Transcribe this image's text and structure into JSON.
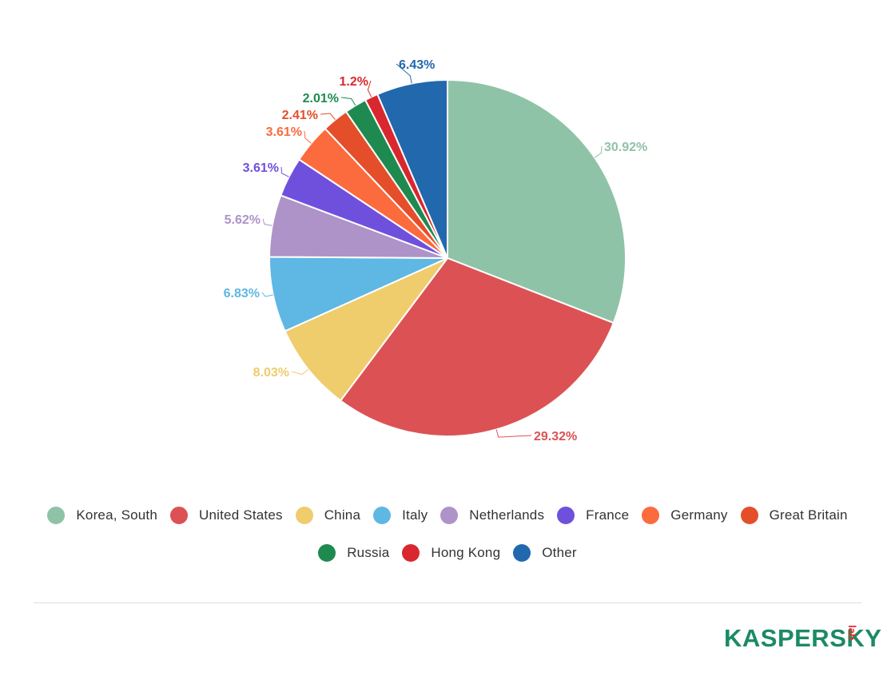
{
  "chart_data": {
    "type": "pie",
    "start_angle_deg": 0,
    "direction": "clockwise",
    "slices": [
      {
        "name": "Korea, South",
        "value": 30.92,
        "label": "30.92%",
        "color": "#8fc3a8"
      },
      {
        "name": "United States",
        "value": 29.32,
        "label": "29.32%",
        "color": "#dc5254"
      },
      {
        "name": "China",
        "value": 8.03,
        "label": "8.03%",
        "color": "#efcc6c"
      },
      {
        "name": "Italy",
        "value": 6.83,
        "label": "6.83%",
        "color": "#5fb7e3"
      },
      {
        "name": "Netherlands",
        "value": 5.62,
        "label": "5.62%",
        "color": "#ad93c8"
      },
      {
        "name": "France",
        "value": 3.61,
        "label": "3.61%",
        "color": "#6f50dc"
      },
      {
        "name": "Germany",
        "value": 3.61,
        "label": "3.61%",
        "color": "#fb6b3e"
      },
      {
        "name": "Great Britain",
        "value": 2.41,
        "label": "2.41%",
        "color": "#e54e2b"
      },
      {
        "name": "Russia",
        "value": 2.01,
        "label": "2.01%",
        "color": "#1e8a4f"
      },
      {
        "name": "Hong Kong",
        "value": 1.2,
        "label": "1.2%",
        "color": "#d8272f"
      },
      {
        "name": "Other",
        "value": 6.43,
        "label": "6.43%",
        "color": "#2268ad"
      }
    ],
    "legend_position": "bottom"
  },
  "legend": {
    "row1": [
      {
        "label": "Korea, South",
        "color": "#8fc3a8"
      },
      {
        "label": "United States",
        "color": "#dc5254"
      },
      {
        "label": "China",
        "color": "#efcc6c"
      },
      {
        "label": "Italy",
        "color": "#5fb7e3"
      },
      {
        "label": "Netherlands",
        "color": "#ad93c8"
      },
      {
        "label": "France",
        "color": "#6f50dc"
      },
      {
        "label": "Germany",
        "color": "#fb6b3e"
      },
      {
        "label": "Great Britain",
        "color": "#e54e2b"
      }
    ],
    "row2": [
      {
        "label": "Russia",
        "color": "#1e8a4f"
      },
      {
        "label": "Hong Kong",
        "color": "#d8272f"
      },
      {
        "label": "Other",
        "color": "#2268ad"
      }
    ]
  },
  "logo": {
    "main": "KASPERSKY",
    "lab": "lab"
  }
}
